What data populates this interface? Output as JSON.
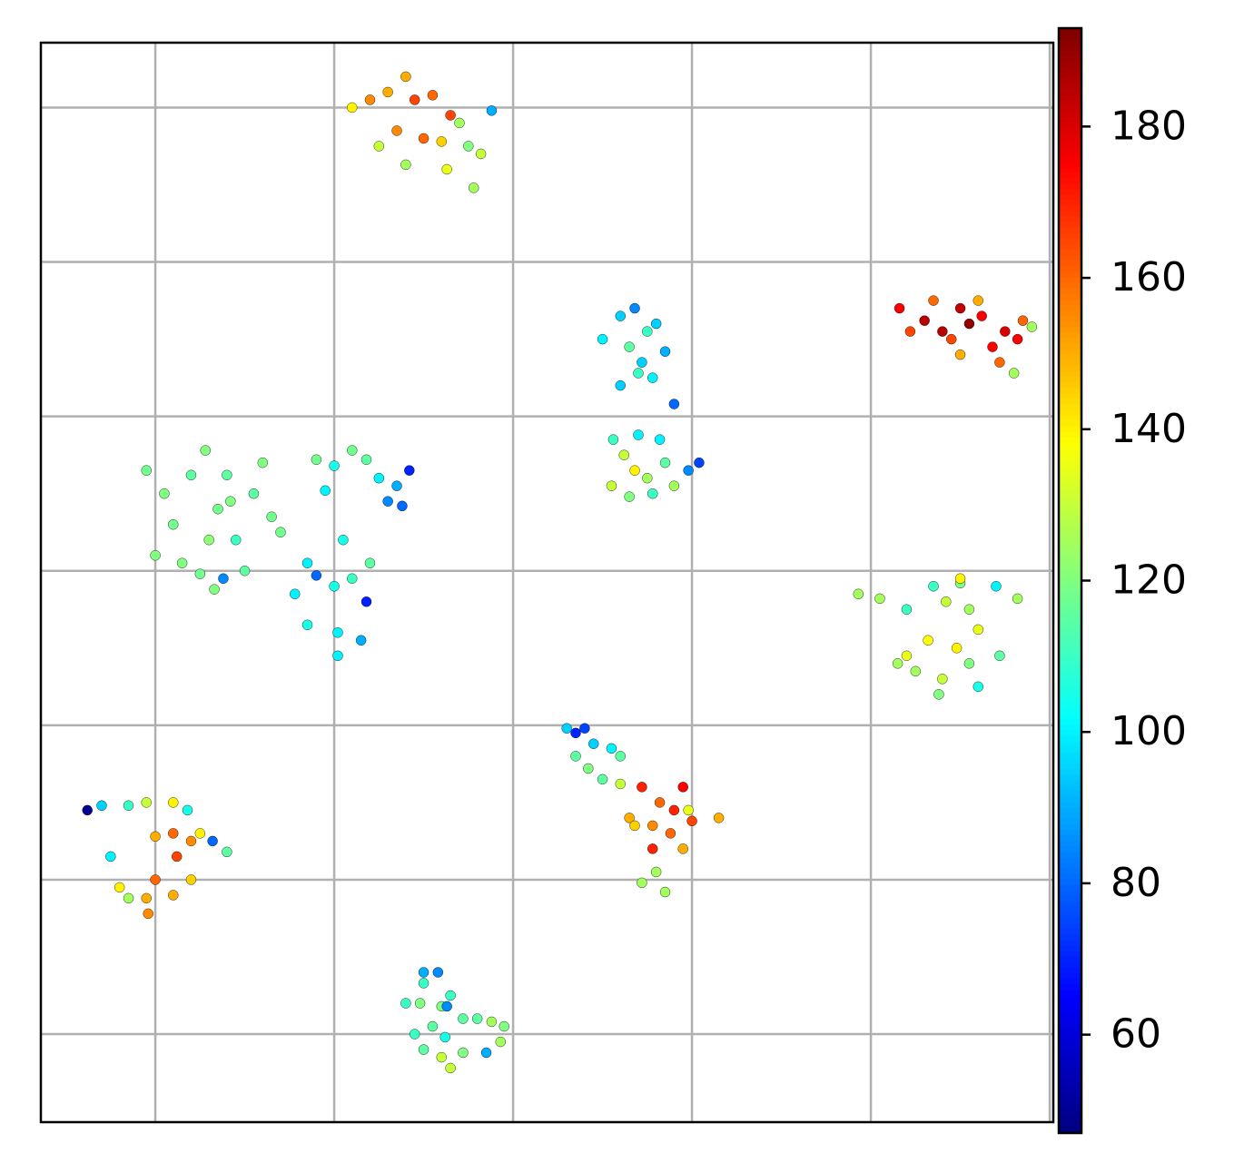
{
  "chart_data": {
    "type": "scatter",
    "colormap": "jet",
    "grid": true,
    "xlim": [
      -0.64,
      5.02
    ],
    "xticks": [
      0,
      1,
      2,
      3,
      4,
      5
    ],
    "ylim": [
      -0.57,
      6.42
    ],
    "yticks": [
      0,
      1,
      2,
      3,
      4,
      5,
      6
    ],
    "clim": [
      47,
      193
    ],
    "cticks": [
      60,
      80,
      100,
      120,
      140,
      160,
      180
    ],
    "x": [
      1.1,
      1.2,
      1.3,
      1.4,
      1.45,
      1.55,
      1.35,
      1.25,
      1.5,
      1.6,
      1.7,
      1.75,
      1.82,
      1.63,
      1.88,
      1.4,
      1.78,
      1.65,
      4.16,
      4.3,
      4.35,
      4.4,
      4.5,
      4.55,
      4.45,
      4.6,
      4.5,
      4.68,
      4.75,
      4.82,
      4.85,
      4.9,
      4.72,
      4.8,
      4.22,
      4.62,
      2.5,
      2.6,
      2.68,
      2.75,
      2.65,
      2.72,
      2.8,
      2.85,
      2.6,
      2.7,
      2.78,
      2.56,
      2.62,
      2.68,
      2.75,
      2.85,
      2.7,
      2.82,
      2.9,
      2.9,
      2.78,
      2.98,
      3.04,
      2.55,
      2.65,
      -0.05,
      0,
      0.05,
      0.1,
      0.2,
      0.28,
      0.35,
      0.4,
      0.45,
      0.55,
      0.6,
      0.65,
      0.15,
      0.25,
      0.33,
      0.5,
      0.3,
      0.42,
      0.38,
      0.7,
      0.9,
      1.0,
      1.1,
      1.18,
      1.25,
      1.35,
      1.42,
      1.3,
      0.95,
      1.05,
      0.85,
      0.9,
      0.78,
      1.0,
      1.1,
      0.85,
      1.02,
      1.15,
      1.18,
      1.02,
      1.2,
      1.38,
      3.93,
      4.05,
      4.2,
      4.35,
      4.5,
      4.42,
      4.55,
      4.7,
      4.82,
      4.6,
      4.48,
      4.32,
      4.2,
      4.25,
      4.4,
      4.55,
      4.72,
      4.6,
      4.38,
      4.15,
      4.5,
      2.3,
      2.35,
      2.4,
      2.45,
      2.55,
      2.35,
      2.42,
      2.5,
      2.6,
      2.72,
      2.82,
      2.9,
      2.95,
      2.65,
      2.78,
      2.88,
      3.0,
      3.15,
      2.95,
      2.78,
      2.8,
      2.72,
      2.85,
      2.68,
      2.98,
      2.6,
      -0.38,
      -0.3,
      -0.15,
      -0.05,
      0.1,
      0.18,
      0,
      0.1,
      0.2,
      0.25,
      0.32,
      0.4,
      0.12,
      0.2,
      0,
      -0.05,
      -0.2,
      -0.25,
      0.1,
      -0.04,
      -0.15,
      1.5,
      1.58,
      1.5,
      1.4,
      1.48,
      1.6,
      1.65,
      1.72,
      1.8,
      1.88,
      1.95,
      1.55,
      1.45,
      1.62,
      1.72,
      1.6,
      1.5,
      1.85,
      1.93,
      1.65,
      1.63
    ],
    "values": [
      6.0,
      6.05,
      6.1,
      6.2,
      6.05,
      6.08,
      5.85,
      5.75,
      5.8,
      5.78,
      5.9,
      5.75,
      5.7,
      5.6,
      5.98,
      5.63,
      5.48,
      5.95,
      4.7,
      4.62,
      4.75,
      4.55,
      4.7,
      4.6,
      4.5,
      4.75,
      4.4,
      4.45,
      4.55,
      4.5,
      4.62,
      4.58,
      4.35,
      4.28,
      4.55,
      4.65,
      4.5,
      4.65,
      4.7,
      4.55,
      4.45,
      4.35,
      4.6,
      4.42,
      4.2,
      4.28,
      4.25,
      3.85,
      3.75,
      3.65,
      3.6,
      3.7,
      3.88,
      3.85,
      4.08,
      3.55,
      3.5,
      3.65,
      3.7,
      3.55,
      3.48,
      3.65,
      3.1,
      3.5,
      3.3,
      3.62,
      3.78,
      3.4,
      3.62,
      3.2,
      3.5,
      3.7,
      3.35,
      3.05,
      2.98,
      2.88,
      3.0,
      3.2,
      3.45,
      2.95,
      3.25,
      3.72,
      3.68,
      3.78,
      3.72,
      3.6,
      3.55,
      3.65,
      3.45,
      3.52,
      3.2,
      3.05,
      2.97,
      2.85,
      2.9,
      2.95,
      2.65,
      2.6,
      2.55,
      2.8,
      2.45,
      3.05,
      3.42,
      2.85,
      2.82,
      2.75,
      2.9,
      2.92,
      2.8,
      2.75,
      2.9,
      2.82,
      2.62,
      2.5,
      2.55,
      2.45,
      2.35,
      2.3,
      2.4,
      2.45,
      2.25,
      2.2,
      2.4,
      2.95,
      1.98,
      1.95,
      1.98,
      1.88,
      1.85,
      1.8,
      1.72,
      1.65,
      1.62,
      1.6,
      1.5,
      1.45,
      1.6,
      1.4,
      1.35,
      1.3,
      1.38,
      1.4,
      1.2,
      1.2,
      1.05,
      0.98,
      0.92,
      1.35,
      1.45,
      1.8,
      1.45,
      1.48,
      1.48,
      1.5,
      1.5,
      1.45,
      1.28,
      1.3,
      1.25,
      1.3,
      1.25,
      1.18,
      1.15,
      1.0,
      1.0,
      0.88,
      0.95,
      1.15,
      0.9,
      0.78,
      0.88,
      0.4,
      0.4,
      0.33,
      0.2,
      0.2,
      0.18,
      0.25,
      0.1,
      0.1,
      0.08,
      0.05,
      0.05,
      0,
      -0.02,
      -0.12,
      -0.15,
      -0.1,
      -0.12,
      -0.05,
      -0.22,
      0.18
    ],
    "color_values": [
      140,
      155,
      150,
      150,
      165,
      160,
      155,
      130,
      160,
      145,
      125,
      120,
      130,
      135,
      90,
      125,
      125,
      165,
      175,
      185,
      160,
      185,
      183,
      190,
      165,
      150,
      150,
      175,
      180,
      175,
      160,
      125,
      160,
      125,
      165,
      175,
      100,
      95,
      85,
      110,
      115,
      95,
      95,
      90,
      95,
      110,
      100,
      110,
      130,
      140,
      125,
      115,
      100,
      100,
      80,
      125,
      110,
      85,
      75,
      130,
      120,
      118,
      120,
      120,
      118,
      115,
      120,
      118,
      115,
      110,
      115,
      120,
      118,
      120,
      118,
      120,
      115,
      122,
      120,
      85,
      118,
      118,
      105,
      118,
      115,
      100,
      90,
      70,
      85,
      100,
      105,
      100,
      80,
      100,
      105,
      110,
      105,
      100,
      90,
      70,
      100,
      115,
      80,
      125,
      125,
      110,
      110,
      120,
      130,
      125,
      100,
      125,
      135,
      140,
      138,
      135,
      125,
      130,
      120,
      115,
      105,
      120,
      125,
      140,
      95,
      70,
      75,
      95,
      100,
      115,
      120,
      115,
      130,
      170,
      160,
      170,
      175,
      150,
      155,
      160,
      165,
      150,
      150,
      170,
      125,
      125,
      125,
      145,
      135,
      115,
      50,
      95,
      110,
      130,
      140,
      105,
      150,
      160,
      155,
      140,
      80,
      115,
      165,
      145,
      160,
      150,
      140,
      100,
      150,
      155,
      125,
      90,
      85,
      110,
      110,
      120,
      120,
      110,
      115,
      115,
      125,
      120,
      115,
      110,
      105,
      120,
      130,
      115,
      90,
      125,
      130,
      85
    ]
  }
}
